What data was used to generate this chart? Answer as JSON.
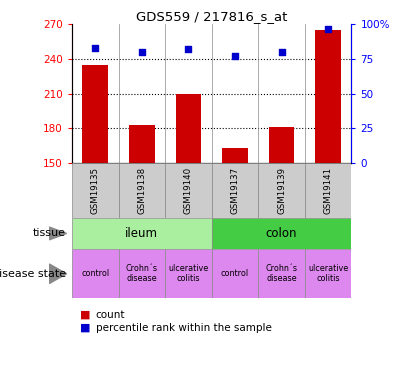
{
  "title": "GDS559 / 217816_s_at",
  "samples": [
    "GSM19135",
    "GSM19138",
    "GSM19140",
    "GSM19137",
    "GSM19139",
    "GSM19141"
  ],
  "counts": [
    235,
    183,
    210,
    163,
    181,
    265
  ],
  "percentiles": [
    83,
    80,
    82,
    77,
    80,
    97
  ],
  "ylim_left": [
    150,
    270
  ],
  "ylim_right": [
    0,
    100
  ],
  "yticks_left": [
    150,
    180,
    210,
    240,
    270
  ],
  "yticks_right": [
    0,
    25,
    50,
    75,
    100
  ],
  "ytick_labels_right": [
    "0",
    "25",
    "50",
    "75",
    "100%"
  ],
  "bar_color": "#cc0000",
  "dot_color": "#0000cc",
  "tissue_ileum_color": "#aaeea0",
  "tissue_colon_color": "#44cc44",
  "disease_color": "#dd88ee",
  "sample_bg_color": "#cccccc",
  "disease_labels": [
    "control",
    "Crohn´s\ndisease",
    "ulcerative\ncolitis",
    "control",
    "Crohn´s\ndisease",
    "ulcerative\ncolitis"
  ],
  "legend_count_label": "count",
  "legend_percentile_label": "percentile rank within the sample",
  "tissue_label": "tissue",
  "disease_label": "disease state"
}
